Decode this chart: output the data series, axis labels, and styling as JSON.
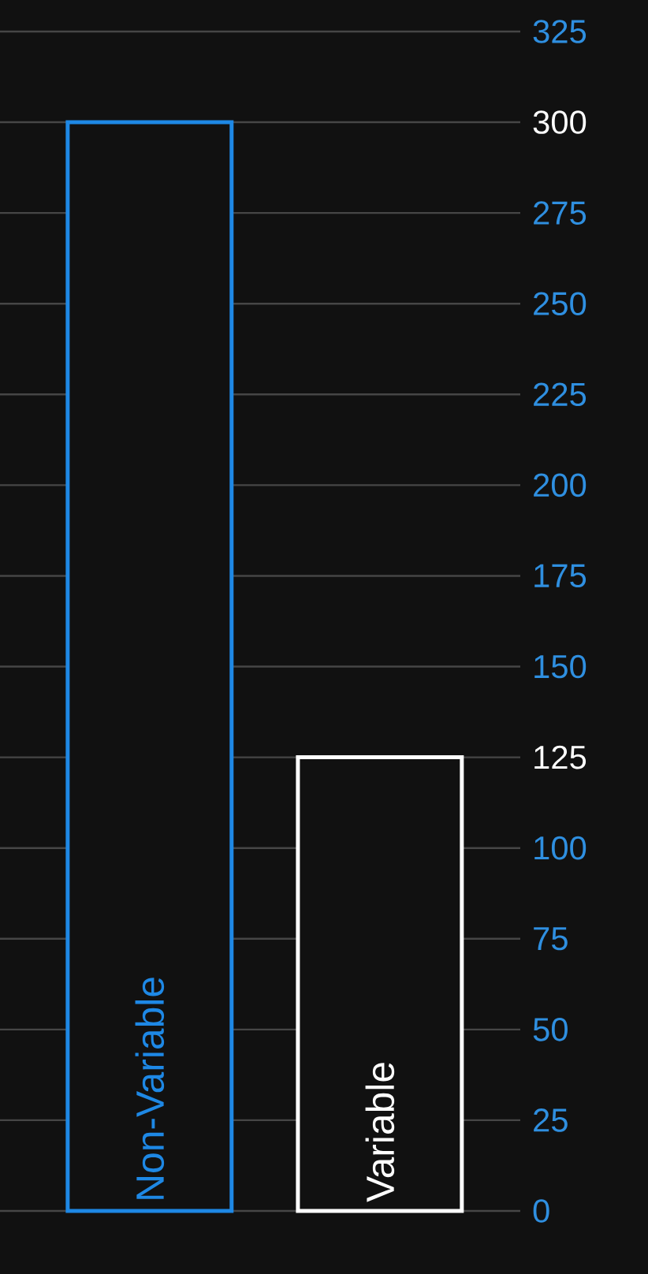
{
  "chart_data": {
    "type": "bar",
    "categories": [
      "Non-Variable",
      "Variable"
    ],
    "values": [
      300,
      125
    ],
    "colors": [
      "#1e88e5",
      "#ffffff"
    ],
    "ylim": [
      0,
      325
    ],
    "yticks": [
      0,
      25,
      50,
      75,
      100,
      125,
      150,
      175,
      200,
      225,
      250,
      275,
      300,
      325
    ],
    "grid": "y"
  }
}
